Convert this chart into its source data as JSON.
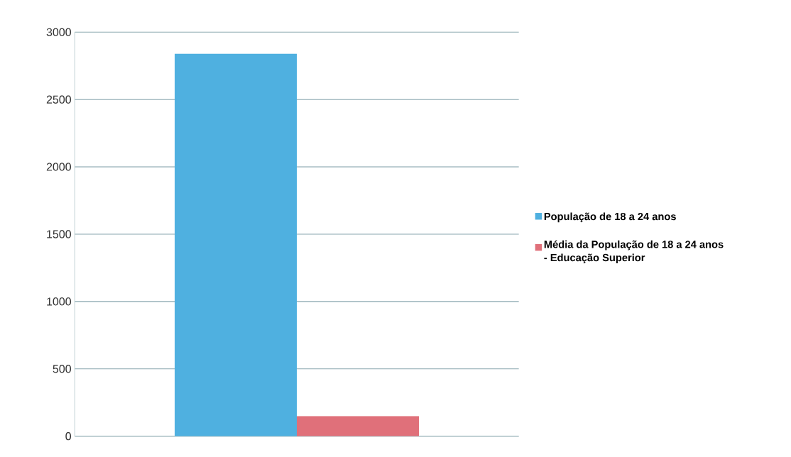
{
  "chart_data": {
    "type": "bar",
    "categories": [
      null
    ],
    "series": [
      {
        "name": "População de 18 a 24 anos",
        "color": "#4fb0e0",
        "values": [
          2840
        ]
      },
      {
        "name": "Média da População de 18 a 24 anos - Educação Superior",
        "color": "#e0707a",
        "values": [
          150
        ]
      }
    ],
    "ylim": [
      0,
      3000
    ],
    "yticks": [
      0,
      500,
      1000,
      1500,
      2000,
      2500,
      3000
    ],
    "grid": "y",
    "legend": "right"
  }
}
